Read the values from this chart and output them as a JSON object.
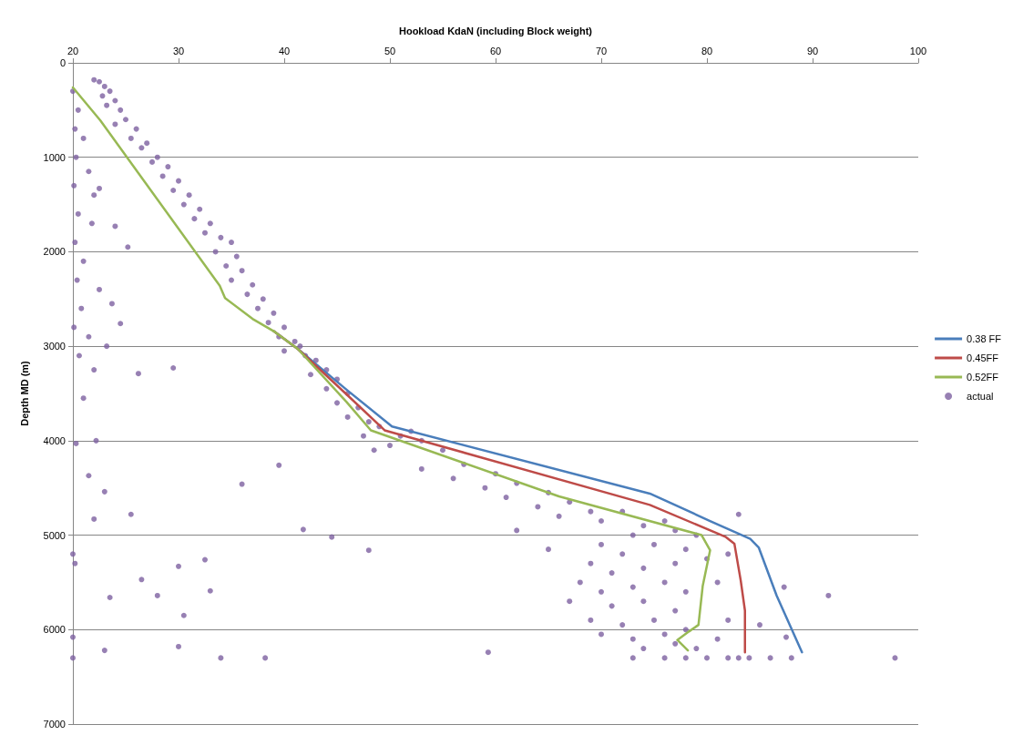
{
  "chart_data": {
    "type": "line",
    "xlabel": "Hookload KdaN (including Block weight)",
    "ylabel": "Depth MD (m)",
    "xlim": [
      20,
      100
    ],
    "xticks": [
      20,
      30,
      40,
      50,
      60,
      70,
      80,
      90,
      100
    ],
    "ylim": [
      7000,
      0
    ],
    "yticks": [
      0,
      1000,
      2000,
      3000,
      4000,
      5000,
      6000,
      7000
    ],
    "grid": "y",
    "legend": "right",
    "series": [
      {
        "name": "0.38 FF",
        "color": "#4a7ebb",
        "marker": "none",
        "x": [
          39.0,
          41.3,
          45.9,
          50.2,
          74.6,
          80.3,
          84.1,
          84.9,
          86.6,
          89.0
        ],
        "values": [
          2840,
          3030,
          3460,
          3850,
          4560,
          4850,
          5040,
          5130,
          5640,
          6240
        ]
      },
      {
        "name": "0.45FF",
        "color": "#be4b48",
        "marker": "none",
        "x": [
          39.0,
          41.3,
          45.9,
          49.5,
          74.6,
          81.8,
          82.6,
          83.2,
          83.6,
          83.6
        ],
        "values": [
          2840,
          3030,
          3510,
          3890,
          4680,
          5020,
          5090,
          5480,
          5800,
          6240
        ]
      },
      {
        "name": "0.52FF",
        "color": "#98b954",
        "marker": "none",
        "x": [
          20,
          22.6,
          33.9,
          34.4,
          37.0,
          39.0,
          41.3,
          45.9,
          48.2,
          66.0,
          79.5,
          80.3,
          79.6,
          79.2,
          78.3,
          77.2,
          78.2
        ],
        "values": [
          260,
          610,
          2360,
          2490,
          2710,
          2840,
          3030,
          3590,
          3890,
          4590,
          5000,
          5160,
          5540,
          5950,
          6020,
          6110,
          6220
        ]
      },
      {
        "name": "actual",
        "type": "scatter",
        "color": "#7d60a0",
        "marker": "circle",
        "x": [
          22.0,
          22.5,
          23,
          23.5,
          22.8,
          24,
          23.2,
          24.5,
          25,
          24,
          26,
          25.5,
          27,
          26.5,
          28,
          27.5,
          29,
          28.5,
          30,
          29.5,
          31,
          30.5,
          32,
          31.5,
          33,
          32.5,
          34,
          35,
          33.5,
          35.5,
          34.5,
          36,
          35,
          37,
          36.5,
          38,
          37.5,
          39,
          38.5,
          40,
          39.5,
          41,
          40,
          42,
          41.5,
          43,
          44,
          42.5,
          45,
          44,
          46,
          45,
          47,
          46,
          48,
          49,
          47.5,
          51,
          52,
          53,
          50,
          55,
          48.5,
          53,
          57,
          56,
          60,
          59,
          62,
          61,
          65,
          64,
          67,
          66,
          69,
          72,
          70,
          74,
          76,
          73,
          77,
          79,
          62,
          65,
          70,
          72,
          75,
          78,
          69,
          71,
          74,
          77,
          80,
          68,
          70,
          73,
          76,
          78,
          67,
          71,
          74,
          77,
          69,
          72,
          75,
          78,
          70,
          73,
          76,
          74,
          77,
          79,
          81,
          82,
          81,
          82,
          83,
          85,
          87.3,
          91.5,
          88,
          86,
          84,
          83,
          82,
          80,
          78,
          76,
          73,
          97.8,
          87.5,
          20,
          20.5,
          20.2,
          21,
          20.3,
          21.5,
          20.1,
          22,
          20.5,
          21.8,
          20.2,
          21,
          20.4,
          22.5,
          20.8,
          20.1,
          21.5,
          20.6,
          22,
          21,
          20.3,
          22.2,
          21.5,
          23,
          22,
          25.5,
          20,
          20.2,
          23.5,
          26.5,
          28,
          30,
          32.5,
          33,
          30.5,
          30,
          23,
          20,
          20,
          34,
          38.2,
          59.3,
          48,
          44.5,
          41.8,
          39.5,
          36,
          29.5,
          26.2,
          25.2,
          24,
          22.5,
          23.7,
          24.5,
          23.2
        ],
        "values": [
          180,
          200,
          250,
          300,
          350,
          400,
          450,
          500,
          600,
          650,
          700,
          800,
          850,
          900,
          1000,
          1050,
          1100,
          1200,
          1250,
          1350,
          1400,
          1500,
          1550,
          1650,
          1700,
          1800,
          1850,
          1900,
          2000,
          2050,
          2150,
          2200,
          2300,
          2350,
          2450,
          2500,
          2600,
          2650,
          2750,
          2800,
          2900,
          2950,
          3050,
          3100,
          3000,
          3150,
          3250,
          3300,
          3350,
          3450,
          3500,
          3600,
          3650,
          3750,
          3800,
          3850,
          3950,
          3950,
          3900,
          4000,
          4050,
          4100,
          4100,
          4300,
          4250,
          4400,
          4350,
          4500,
          4450,
          4600,
          4550,
          4700,
          4650,
          4800,
          4750,
          4750,
          4850,
          4900,
          4850,
          5000,
          4950,
          5000,
          4950,
          5150,
          5100,
          5200,
          5100,
          5150,
          5300,
          5400,
          5350,
          5300,
          5250,
          5500,
          5600,
          5550,
          5500,
          5600,
          5700,
          5750,
          5700,
          5800,
          5900,
          5950,
          5900,
          6000,
          6050,
          6100,
          6050,
          6200,
          6150,
          6200,
          6100,
          5900,
          5500,
          5200,
          4780,
          5950,
          5550,
          5640,
          6300,
          6300,
          6300,
          6300,
          6300,
          6300,
          6300,
          6300,
          6300,
          6300,
          6080,
          300,
          500,
          700,
          800,
          1000,
          1150,
          1300,
          1400,
          1600,
          1700,
          1900,
          2100,
          2300,
          2400,
          2600,
          2800,
          2900,
          3100,
          3250,
          3550,
          4030,
          4000,
          4370,
          4540,
          4830,
          4780,
          5200,
          5300,
          5660,
          5470,
          5640,
          5330,
          5260,
          5590,
          5850,
          6180,
          6220,
          6080,
          6300,
          6300,
          6300,
          6240,
          5160,
          5020,
          4940,
          4260,
          4460,
          3230,
          3290,
          1950,
          1730,
          1330,
          2550,
          2760,
          3000
        ]
      }
    ]
  }
}
